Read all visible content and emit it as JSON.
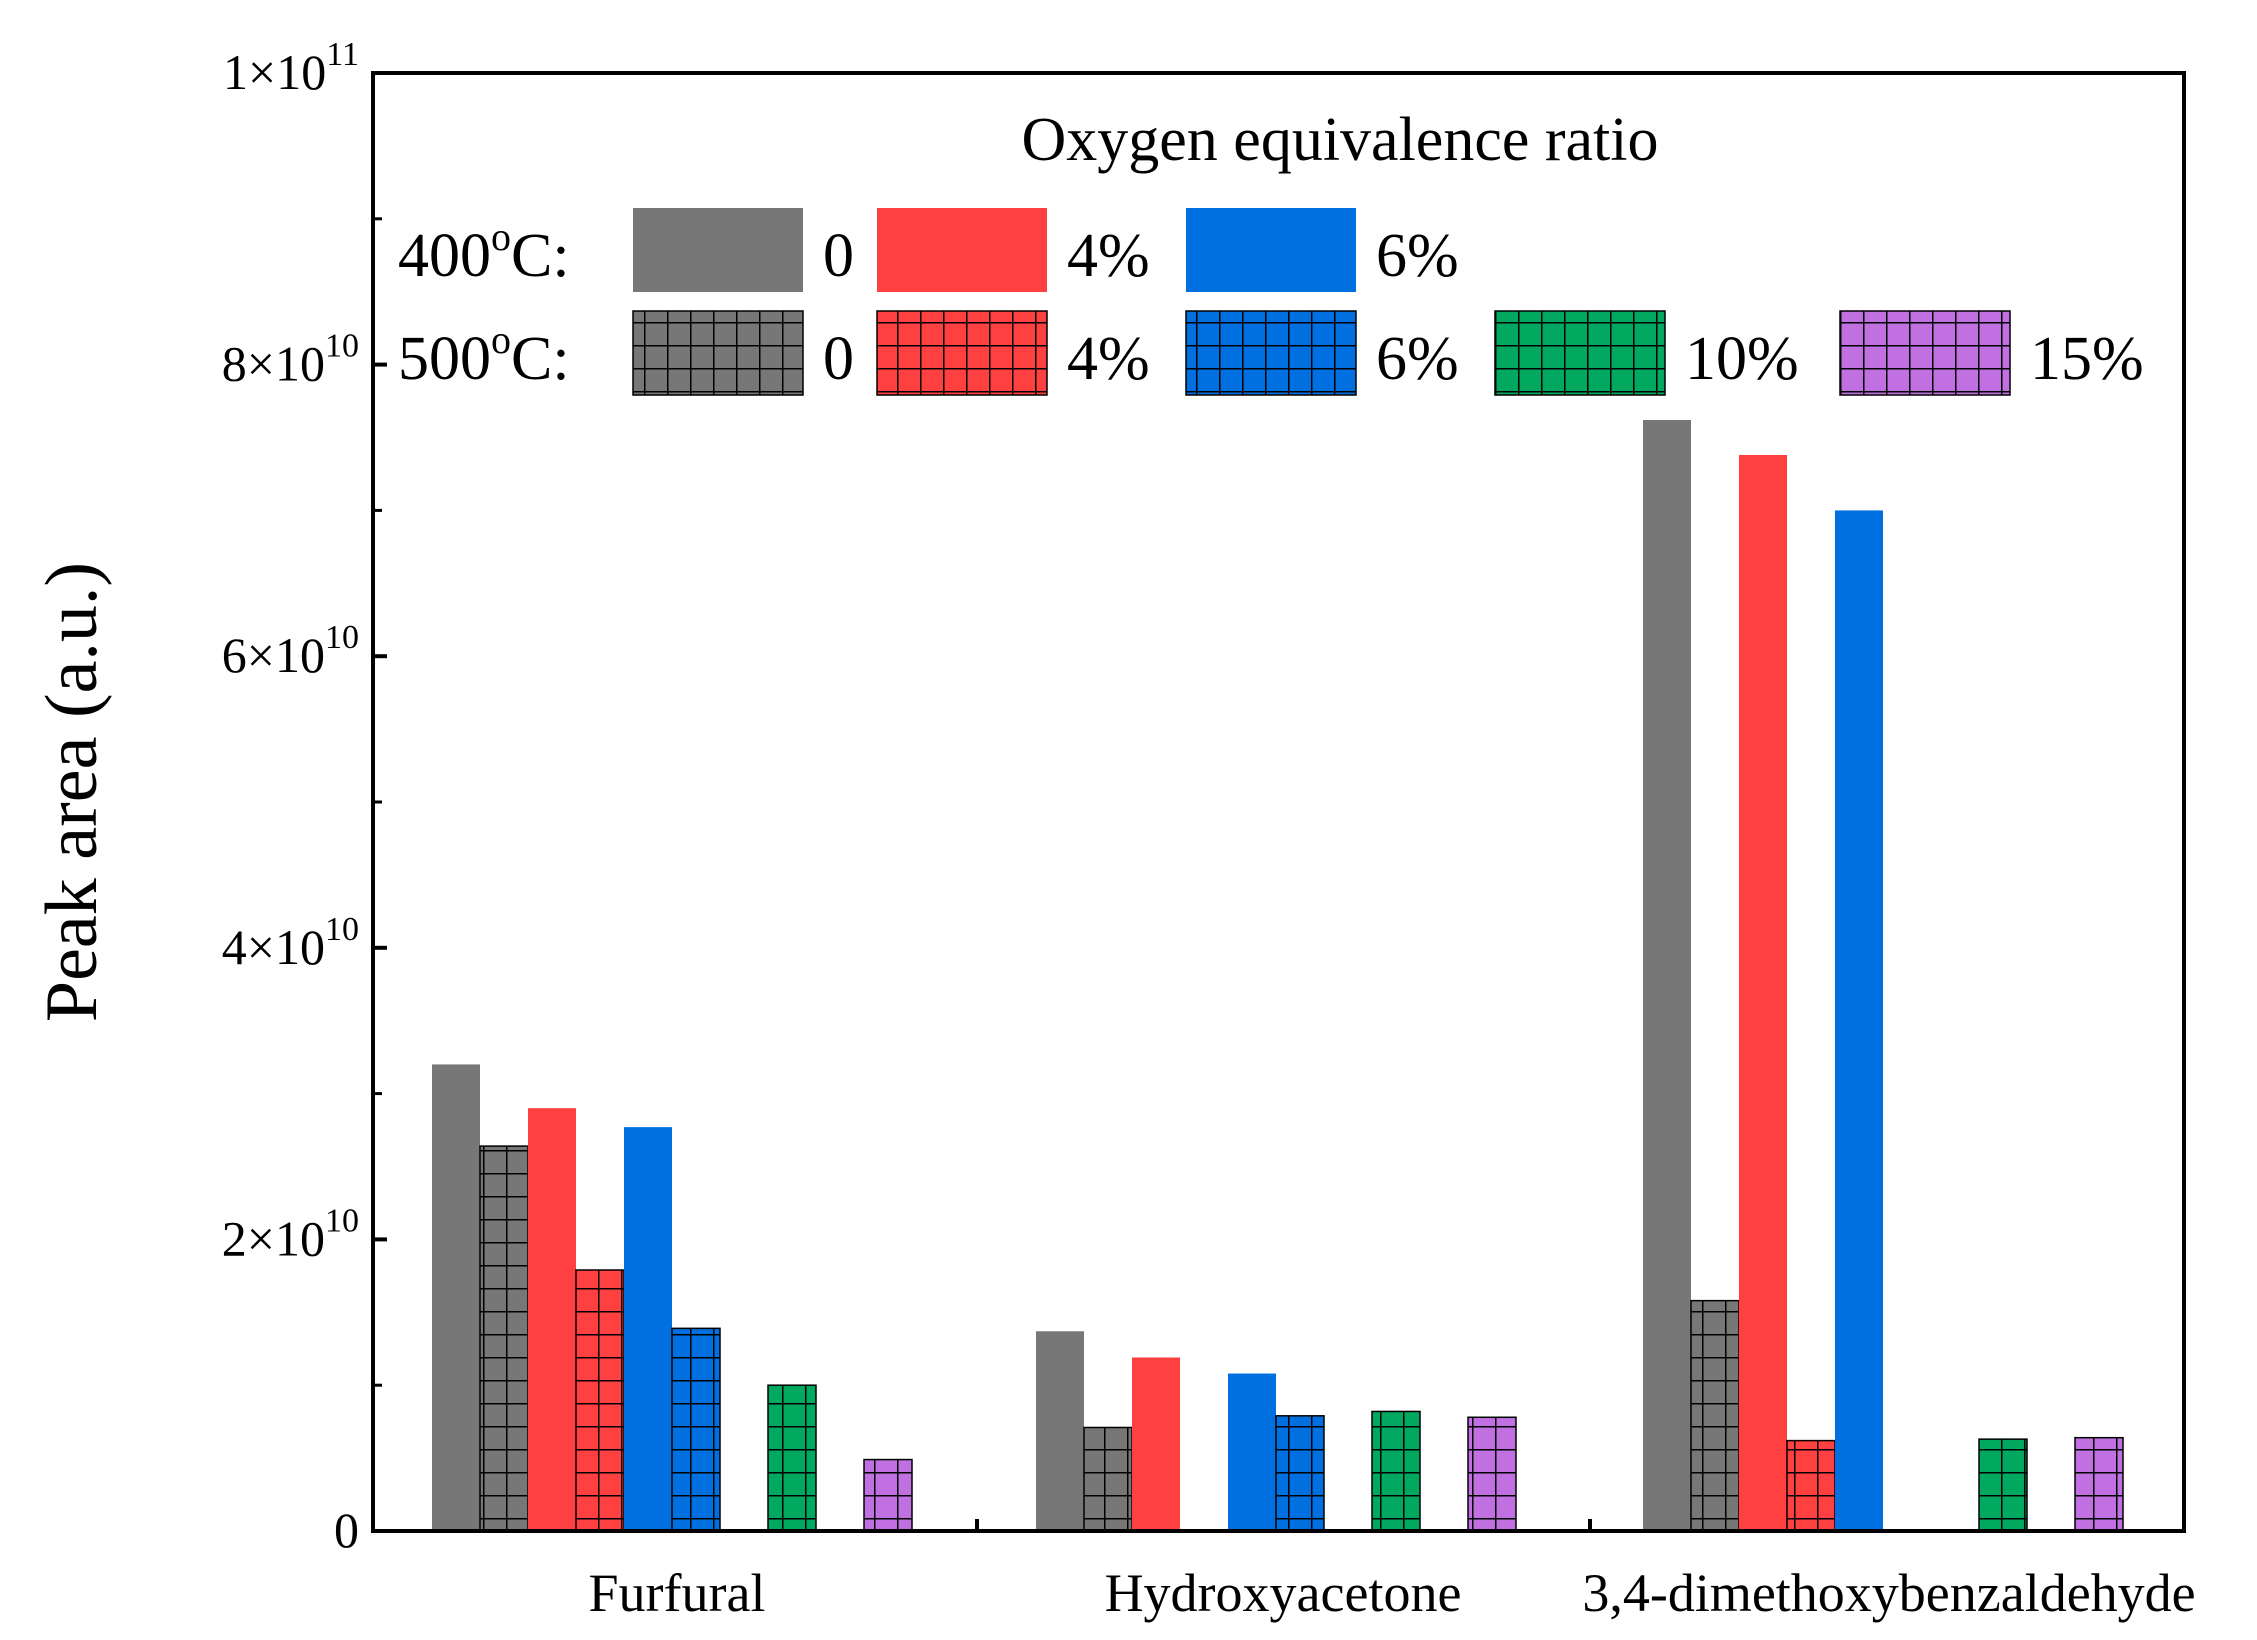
{
  "chart_data": {
    "type": "bar",
    "ylabel": "Peak area (a.u.)",
    "ylim": [
      0,
      100000000000
    ],
    "y_ticks": [
      {
        "value": 0,
        "mantissa": "0",
        "exponent": ""
      },
      {
        "value": 20000000000,
        "mantissa": "2×10",
        "exponent": "10"
      },
      {
        "value": 40000000000,
        "mantissa": "4×10",
        "exponent": "10"
      },
      {
        "value": 60000000000,
        "mantissa": "6×10",
        "exponent": "10"
      },
      {
        "value": 80000000000,
        "mantissa": "8×10",
        "exponent": "10"
      },
      {
        "value": 100000000000,
        "mantissa": "1×10",
        "exponent": "11"
      }
    ],
    "categories": [
      "Furfural",
      "Hydroxyacetone",
      "3,4-dimethoxybenzaldehyde"
    ],
    "legend": {
      "title": "Oxygen equivalence ratio",
      "row_labels": [
        {
          "main": "400",
          "sup": "o",
          "suffix": "C:"
        },
        {
          "main": "500",
          "sup": "o",
          "suffix": "C:"
        }
      ],
      "placement": "top"
    },
    "series": [
      {
        "name": "0",
        "temperature": "400°C",
        "hatched": false,
        "color": "#777777",
        "values": [
          32000000000,
          13700000000,
          76200000000
        ]
      },
      {
        "name": "0",
        "temperature": "500°C",
        "hatched": true,
        "color": "#777777",
        "values": [
          26400000000,
          7100000000,
          15800000000
        ]
      },
      {
        "name": "4%",
        "temperature": "400°C",
        "hatched": false,
        "color": "#ff4040",
        "values": [
          29000000000,
          11900000000,
          73800000000
        ]
      },
      {
        "name": "4%",
        "temperature": "500°C",
        "hatched": true,
        "color": "#ff4040",
        "values": [
          17900000000,
          null,
          6200000000
        ]
      },
      {
        "name": "6%",
        "temperature": "400°C",
        "hatched": false,
        "color": "#0070e0",
        "values": [
          27700000000,
          10800000000,
          70000000000
        ]
      },
      {
        "name": "6%",
        "temperature": "500°C",
        "hatched": true,
        "color": "#0070e0",
        "values": [
          13900000000,
          7900000000,
          null
        ]
      },
      {
        "name": "10%",
        "temperature": "500°C",
        "hatched": true,
        "color": "#00a860",
        "values": [
          10000000000,
          8200000000,
          6300000000
        ]
      },
      {
        "name": "15%",
        "temperature": "500°C",
        "hatched": true,
        "color": "#c070e0",
        "values": [
          4900000000,
          7800000000,
          6400000000
        ]
      }
    ]
  }
}
